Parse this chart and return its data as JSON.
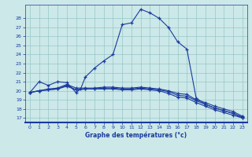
{
  "xlabel": "Graphe des températures (°c)",
  "bg_color": "#cce8e8",
  "line_color": "#1a3a9e",
  "grid_color": "#8bbfbf",
  "xlim": [
    -0.5,
    23.5
  ],
  "ylim": [
    16.5,
    29.5
  ],
  "yticks": [
    17,
    18,
    19,
    20,
    21,
    22,
    23,
    24,
    25,
    26,
    27,
    28
  ],
  "xticks": [
    0,
    1,
    2,
    3,
    4,
    5,
    6,
    7,
    8,
    9,
    10,
    11,
    12,
    13,
    14,
    15,
    16,
    17,
    18,
    19,
    20,
    21,
    22,
    23
  ],
  "curve1_x": [
    0,
    1,
    2,
    3,
    4,
    5,
    5.5,
    6,
    7,
    8,
    9,
    10,
    11,
    12,
    13,
    14,
    15,
    16,
    17,
    18,
    19,
    20,
    21,
    22,
    23
  ],
  "curve1_y": [
    19.8,
    21.0,
    20.6,
    21.0,
    20.9,
    19.8,
    20.2,
    21.5,
    22.5,
    23.3,
    24.0,
    27.3,
    27.5,
    29.0,
    28.6,
    28.0,
    27.0,
    25.4,
    24.6,
    19.2,
    18.5,
    18.1,
    17.8,
    17.5,
    17.0
  ],
  "curve2_x": [
    0,
    1,
    2,
    3,
    4,
    5,
    6,
    7,
    8,
    9,
    10,
    11,
    12,
    13,
    14,
    15,
    16,
    17,
    18,
    19,
    20,
    21,
    22,
    23
  ],
  "curve2_y": [
    19.8,
    20.0,
    20.1,
    20.2,
    20.5,
    20.1,
    20.2,
    20.2,
    20.2,
    20.2,
    20.1,
    20.1,
    20.2,
    20.1,
    20.0,
    19.7,
    19.3,
    19.2,
    18.7,
    18.3,
    17.9,
    17.6,
    17.3,
    17.0
  ],
  "curve3_x": [
    0,
    1,
    2,
    3,
    4,
    5,
    6,
    7,
    8,
    9,
    10,
    11,
    12,
    13,
    14,
    15,
    16,
    17,
    18,
    19,
    20,
    21,
    22,
    23
  ],
  "curve3_y": [
    19.8,
    20.0,
    20.1,
    20.2,
    20.6,
    20.1,
    20.2,
    20.2,
    20.3,
    20.3,
    20.2,
    20.2,
    20.3,
    20.2,
    20.1,
    19.9,
    19.5,
    19.4,
    18.9,
    18.5,
    18.1,
    17.8,
    17.5,
    17.1
  ],
  "curve4_x": [
    0,
    1,
    2,
    3,
    4,
    5,
    6,
    7,
    8,
    9,
    10,
    11,
    12,
    13,
    14,
    15,
    16,
    17,
    18,
    19,
    20,
    21,
    22,
    23
  ],
  "curve4_y": [
    19.8,
    20.0,
    20.2,
    20.3,
    20.7,
    20.3,
    20.3,
    20.3,
    20.4,
    20.4,
    20.3,
    20.3,
    20.4,
    20.3,
    20.2,
    20.0,
    19.7,
    19.6,
    19.0,
    18.7,
    18.3,
    18.0,
    17.7,
    17.2
  ]
}
